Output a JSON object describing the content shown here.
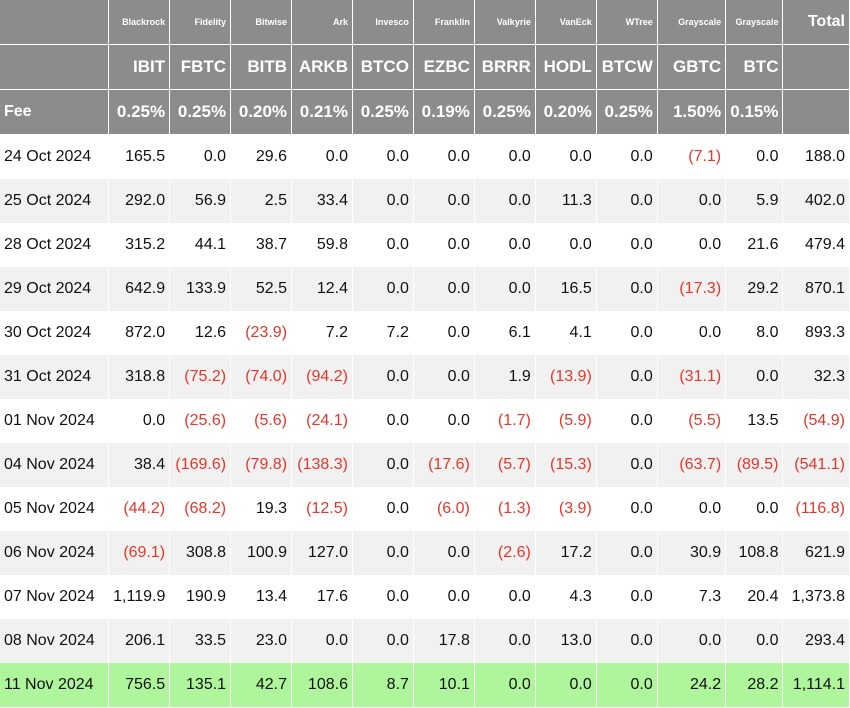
{
  "table": {
    "issuers": [
      "Blackrock",
      "Fidelity",
      "Bitwise",
      "Ark",
      "Invesco",
      "Franklin",
      "Valkyrie",
      "VanEck",
      "WTree",
      "Grayscale",
      "Grayscale"
    ],
    "total_label": "Total",
    "tickers": [
      "IBIT",
      "FBTC",
      "BITB",
      "ARKB",
      "BTCO",
      "EZBC",
      "BRRR",
      "HODL",
      "BTCW",
      "GBTC",
      "BTC"
    ],
    "fee_label": "Fee",
    "fees": [
      "0.25%",
      "0.25%",
      "0.20%",
      "0.21%",
      "0.25%",
      "0.19%",
      "0.25%",
      "0.20%",
      "0.25%",
      "1.50%",
      "0.15%"
    ],
    "colors": {
      "header_bg": "#8c8c8c",
      "negative": "#e8352b",
      "highlight": "#aef59b",
      "stripe": "#f1f1f1"
    },
    "rows": [
      {
        "date": "24 Oct 2024",
        "values": [
          "165.5",
          "0.0",
          "29.6",
          "0.0",
          "0.0",
          "0.0",
          "0.0",
          "0.0",
          "0.0",
          "(7.1)",
          "0.0"
        ],
        "total": "188.0"
      },
      {
        "date": "25 Oct 2024",
        "values": [
          "292.0",
          "56.9",
          "2.5",
          "33.4",
          "0.0",
          "0.0",
          "0.0",
          "11.3",
          "0.0",
          "0.0",
          "5.9"
        ],
        "total": "402.0"
      },
      {
        "date": "28 Oct 2024",
        "values": [
          "315.2",
          "44.1",
          "38.7",
          "59.8",
          "0.0",
          "0.0",
          "0.0",
          "0.0",
          "0.0",
          "0.0",
          "21.6"
        ],
        "total": "479.4"
      },
      {
        "date": "29 Oct 2024",
        "values": [
          "642.9",
          "133.9",
          "52.5",
          "12.4",
          "0.0",
          "0.0",
          "0.0",
          "16.5",
          "0.0",
          "(17.3)",
          "29.2"
        ],
        "total": "870.1"
      },
      {
        "date": "30 Oct 2024",
        "values": [
          "872.0",
          "12.6",
          "(23.9)",
          "7.2",
          "7.2",
          "0.0",
          "6.1",
          "4.1",
          "0.0",
          "0.0",
          "8.0"
        ],
        "total": "893.3"
      },
      {
        "date": "31 Oct 2024",
        "values": [
          "318.8",
          "(75.2)",
          "(74.0)",
          "(94.2)",
          "0.0",
          "0.0",
          "1.9",
          "(13.9)",
          "0.0",
          "(31.1)",
          "0.0"
        ],
        "total": "32.3"
      },
      {
        "date": "01 Nov 2024",
        "values": [
          "0.0",
          "(25.6)",
          "(5.6)",
          "(24.1)",
          "0.0",
          "0.0",
          "(1.7)",
          "(5.9)",
          "0.0",
          "(5.5)",
          "13.5"
        ],
        "total": "(54.9)"
      },
      {
        "date": "04 Nov 2024",
        "values": [
          "38.4",
          "(169.6)",
          "(79.8)",
          "(138.3)",
          "0.0",
          "(17.6)",
          "(5.7)",
          "(15.3)",
          "0.0",
          "(63.7)",
          "(89.5)"
        ],
        "total": "(541.1)"
      },
      {
        "date": "05 Nov 2024",
        "values": [
          "(44.2)",
          "(68.2)",
          "19.3",
          "(12.5)",
          "0.0",
          "(6.0)",
          "(1.3)",
          "(3.9)",
          "0.0",
          "0.0",
          "0.0"
        ],
        "total": "(116.8)"
      },
      {
        "date": "06 Nov 2024",
        "values": [
          "(69.1)",
          "308.8",
          "100.9",
          "127.0",
          "0.0",
          "0.0",
          "(2.6)",
          "17.2",
          "0.0",
          "30.9",
          "108.8"
        ],
        "total": "621.9"
      },
      {
        "date": "07 Nov 2024",
        "values": [
          "1,119.9",
          "190.9",
          "13.4",
          "17.6",
          "0.0",
          "0.0",
          "0.0",
          "4.3",
          "0.0",
          "7.3",
          "20.4"
        ],
        "total": "1,373.8"
      },
      {
        "date": "08 Nov 2024",
        "values": [
          "206.1",
          "33.5",
          "23.0",
          "0.0",
          "0.0",
          "17.8",
          "0.0",
          "13.0",
          "0.0",
          "0.0",
          "0.0"
        ],
        "total": "293.4"
      },
      {
        "date": "11 Nov 2024",
        "values": [
          "756.5",
          "135.1",
          "42.7",
          "108.6",
          "8.7",
          "10.1",
          "0.0",
          "0.0",
          "0.0",
          "24.2",
          "28.2"
        ],
        "total": "1,114.1",
        "highlight": true
      }
    ]
  }
}
